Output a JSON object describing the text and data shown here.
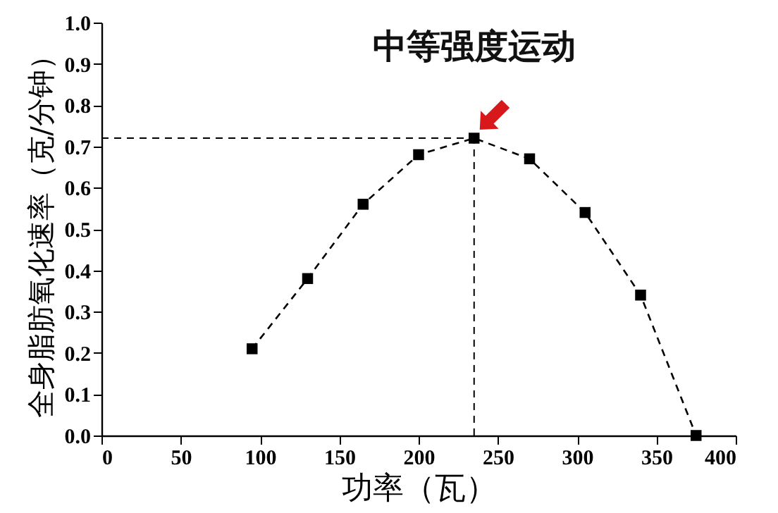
{
  "chart_data": {
    "type": "line",
    "xlabel": "功率（瓦）",
    "ylabel": "全身脂肪氧化速率（克/分钟）",
    "x": [
      95,
      130,
      165,
      200,
      235,
      270,
      305,
      340,
      375
    ],
    "series": [
      {
        "color": "#000000",
        "values": [
          0.21,
          0.38,
          0.56,
          0.68,
          0.72,
          0.67,
          0.54,
          0.34,
          0.0
        ]
      }
    ],
    "xlim": [
      0,
      400
    ],
    "xticks": [
      0,
      50,
      100,
      150,
      200,
      250,
      300,
      350,
      400
    ],
    "ylim": [
      0,
      1.0
    ],
    "yticks": [
      {
        "value": 0,
        "label": "0.0"
      },
      {
        "value": 0.1,
        "label": "0.1"
      },
      {
        "value": 0.2,
        "label": "0.2"
      },
      {
        "value": 0.3,
        "label": "0.3"
      },
      {
        "value": 0.4,
        "label": "0.4"
      },
      {
        "value": 0.5,
        "label": "0.5"
      },
      {
        "value": 0.6,
        "label": "0.6"
      },
      {
        "value": 0.7,
        "label": "0.7"
      },
      {
        "value": 0.8,
        "label": "0.8"
      },
      {
        "value": 0.9,
        "label": "0.9"
      },
      {
        "value": 1.0,
        "label": "1.0"
      }
    ],
    "ref_lines": [
      {
        "axis": "y",
        "value": 0.72,
        "line_style": "dashed",
        "color": "#000000"
      },
      {
        "axis": "x",
        "value": 235,
        "line_style": "dashed",
        "color": "#000000"
      }
    ],
    "annotations": [
      {
        "text": "中等强度运动",
        "x": 235,
        "y": 0.72
      }
    ],
    "marker": "square",
    "line_style": "dashed",
    "grid": false
  }
}
